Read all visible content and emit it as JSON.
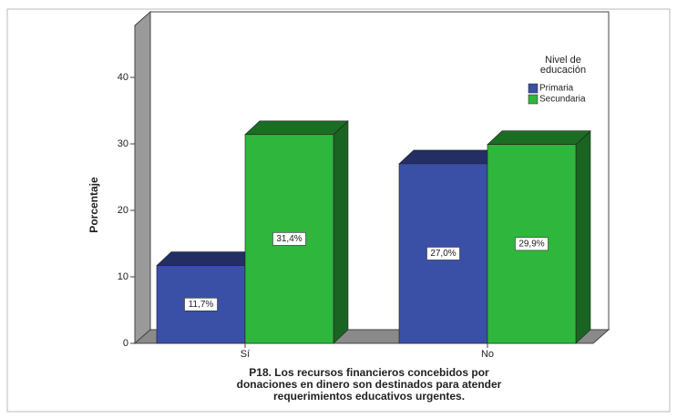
{
  "chart_data": {
    "type": "bar3d",
    "ylabel": "Porcentaje",
    "xlabel": [
      "P18. Los recursos financieros concebidos por",
      "donaciones en dinero son destinados para atender",
      "requerimientos educativos urgentes."
    ],
    "categories": [
      "Sí",
      "No"
    ],
    "legend_title": [
      "Nivel de",
      "educación"
    ],
    "series": [
      {
        "name": "Primaria",
        "color": "#3a4fa6",
        "values": [
          11.7,
          27.0
        ],
        "value_labels": [
          "11,7%",
          "27,0%"
        ]
      },
      {
        "name": "Secundaria",
        "color": "#2fb63c",
        "values": [
          31.4,
          29.9
        ],
        "value_labels": [
          "31,4%",
          "29,9%"
        ]
      }
    ],
    "ylim": [
      0,
      40
    ],
    "yticks": [
      0,
      10,
      20,
      30,
      40
    ]
  }
}
